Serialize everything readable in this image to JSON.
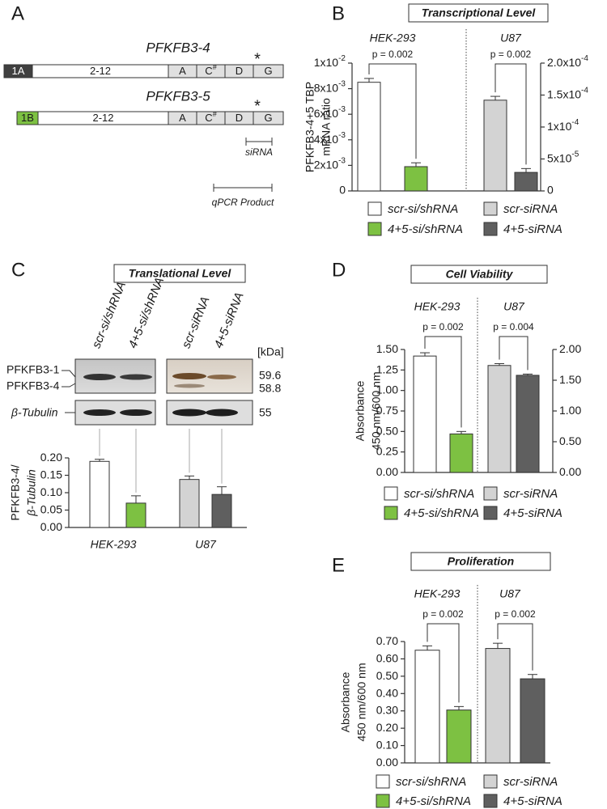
{
  "figure": {
    "panel_a": {
      "letter": "A",
      "genes": [
        {
          "name": "PFKFB3-4",
          "mark": "*",
          "exons": [
            {
              "label": "1A"
            },
            {
              "label": "2-12"
            },
            {
              "label": "A"
            },
            {
              "label": "C",
              "sup": "#"
            },
            {
              "label": "D"
            },
            {
              "label": "G"
            }
          ]
        },
        {
          "name": "PFKFB3-5",
          "mark": "*",
          "exons": [
            {
              "label": "1B"
            },
            {
              "label": "2-12"
            },
            {
              "label": "A"
            },
            {
              "label": "C",
              "sup": "#"
            },
            {
              "label": "D"
            },
            {
              "label": "G"
            }
          ]
        }
      ],
      "sirna": "siRNA",
      "qpcr": "qPCR Product"
    },
    "blot": {
      "size_unit": "[kDa]",
      "bands": [
        {
          "name": "PFKFB3-1",
          "size": "59.6"
        },
        {
          "name": "PFKFB3-4",
          "size": "58.8"
        }
      ],
      "loading": {
        "name": "β-Tubulin",
        "size": "55"
      }
    }
  },
  "chart_data": [
    {
      "type": "bar",
      "panel": "B",
      "title": "Transcriptional Level",
      "categories": [
        "HEK-293",
        "U87"
      ],
      "annotations": [
        "p = 0.002",
        "p = 0.002"
      ],
      "ylabel": [
        "PFKFB3-4+5 TBP",
        "mRNA ratio"
      ],
      "ylim": [
        0,
        0.01
      ],
      "yticks": [
        0,
        {
          "value": 0.002,
          "label": "2x10",
          "sup": "-3"
        },
        {
          "value": 0.004,
          "label": "4x10",
          "sup": "-3"
        },
        {
          "value": 0.006,
          "label": "6x10",
          "sup": "-3"
        },
        {
          "value": 0.008,
          "label": "8x10",
          "sup": "-3"
        },
        {
          "value": 0.01,
          "label": "1x10",
          "sup": "-2"
        }
      ],
      "y2lim": [
        0,
        0.0002
      ],
      "y2ticks": [
        0,
        {
          "value": 5e-05,
          "label": "5x10",
          "sup": "-5"
        },
        {
          "value": 0.0001,
          "label": "1x10",
          "sup": "-4"
        },
        {
          "value": 0.00015,
          "label": "1.5x10",
          "sup": "-4"
        },
        {
          "value": 0.0002,
          "label": "2.0x10",
          "sup": "-4"
        }
      ],
      "series": [
        {
          "name": "scr-si/shRNA",
          "color": "#ffffff",
          "values": [
            0.0085,
            null
          ],
          "errors": [
            0.0003,
            null
          ]
        },
        {
          "name": "4+5-si/shRNA",
          "color": "#7dc142",
          "values": [
            0.0019,
            null
          ],
          "errors": [
            0.0003,
            null
          ]
        },
        {
          "name": "scr-siRNA",
          "color": "#d3d3d3",
          "axis": "y2",
          "values": [
            null,
            0.000142
          ],
          "errors": [
            null,
            6e-06
          ]
        },
        {
          "name": "4+5-siRNA",
          "color": "#5f5f5f",
          "axis": "y2",
          "values": [
            null,
            2.9e-05
          ],
          "errors": [
            null,
            6e-06
          ]
        }
      ]
    },
    {
      "type": "bar",
      "panel": "C",
      "title": "Translational Level",
      "categories": [
        "HEK-293",
        "U87"
      ],
      "ylabel": [
        "PFKFB3-4/",
        "β-Tubulin"
      ],
      "ylim": [
        0,
        0.2
      ],
      "yticks": [
        {
          "value": 0,
          "label": "0.00"
        },
        {
          "value": 0.05,
          "label": "0.05"
        },
        {
          "value": 0.1,
          "label": "0.10"
        },
        {
          "value": 0.15,
          "label": "0.15"
        },
        {
          "value": 0.2,
          "label": "0.20"
        }
      ],
      "series": [
        {
          "name": "scr-si/shRNA",
          "color": "#ffffff",
          "values": [
            0.19,
            null
          ],
          "errors": [
            0.006,
            null
          ]
        },
        {
          "name": "4+5-si/shRNA",
          "color": "#7dc142",
          "values": [
            0.07,
            null
          ],
          "errors": [
            0.021,
            null
          ]
        },
        {
          "name": "scr-siRNA",
          "color": "#d3d3d3",
          "values": [
            null,
            0.138
          ],
          "errors": [
            null,
            0.01
          ]
        },
        {
          "name": "4+5-siRNA",
          "color": "#5f5f5f",
          "values": [
            null,
            0.095
          ],
          "errors": [
            null,
            0.022
          ]
        }
      ]
    },
    {
      "type": "bar",
      "panel": "D",
      "title": "Cell Viability",
      "categories": [
        "HEK-293",
        "U87"
      ],
      "annotations": [
        "p = 0.002",
        "p = 0.004"
      ],
      "ylabel": [
        "Absorbance",
        "450 nm/600 nm"
      ],
      "ylim": [
        0,
        1.5
      ],
      "yticks": [
        {
          "value": 0,
          "label": "0.00"
        },
        {
          "value": 0.25,
          "label": "0.25"
        },
        {
          "value": 0.5,
          "label": "0.50"
        },
        {
          "value": 0.75,
          "label": "0.75"
        },
        {
          "value": 1,
          "label": "1.00"
        },
        {
          "value": 1.25,
          "label": "1.25"
        },
        {
          "value": 1.5,
          "label": "1.50"
        }
      ],
      "y2lim": [
        0,
        2
      ],
      "y2ticks": [
        {
          "value": 0,
          "label": "0.00"
        },
        {
          "value": 0.5,
          "label": "0.50"
        },
        {
          "value": 1,
          "label": "1.00"
        },
        {
          "value": 1.5,
          "label": "1.50"
        },
        {
          "value": 2,
          "label": "2.00"
        }
      ],
      "series": [
        {
          "name": "scr-si/shRNA",
          "color": "#ffffff",
          "values": [
            1.42,
            null
          ],
          "errors": [
            0.04,
            null
          ]
        },
        {
          "name": "4+5-si/shRNA",
          "color": "#7dc142",
          "values": [
            0.47,
            null
          ],
          "errors": [
            0.03,
            null
          ]
        },
        {
          "name": "scr-siRNA",
          "color": "#d3d3d3",
          "axis": "y2",
          "values": [
            null,
            1.74
          ],
          "errors": [
            null,
            0.03
          ]
        },
        {
          "name": "4+5-siRNA",
          "color": "#5f5f5f",
          "axis": "y2",
          "values": [
            null,
            1.58
          ],
          "errors": [
            null,
            0.02
          ]
        }
      ]
    },
    {
      "type": "bar",
      "panel": "E",
      "title": "Proliferation",
      "categories": [
        "HEK-293",
        "U87"
      ],
      "annotations": [
        "p = 0.002",
        "p = 0.002"
      ],
      "ylabel": [
        "Absorbance",
        "450 nm/600 nm"
      ],
      "ylim": [
        0,
        0.7
      ],
      "yticks": [
        {
          "value": 0,
          "label": "0.00"
        },
        {
          "value": 0.1,
          "label": "0.10"
        },
        {
          "value": 0.2,
          "label": "0.20"
        },
        {
          "value": 0.3,
          "label": "0.30"
        },
        {
          "value": 0.4,
          "label": "0.40"
        },
        {
          "value": 0.5,
          "label": "0.50"
        },
        {
          "value": 0.6,
          "label": "0.60"
        },
        {
          "value": 0.7,
          "label": "0.70"
        }
      ],
      "series": [
        {
          "name": "scr-si/shRNA",
          "color": "#ffffff",
          "values": [
            0.65,
            null
          ],
          "errors": [
            0.025,
            null
          ]
        },
        {
          "name": "4+5-si/shRNA",
          "color": "#7dc142",
          "values": [
            0.305,
            null
          ],
          "errors": [
            0.02,
            null
          ]
        },
        {
          "name": "scr-siRNA",
          "color": "#d3d3d3",
          "values": [
            null,
            0.66
          ],
          "errors": [
            null,
            0.03
          ]
        },
        {
          "name": "4+5-siRNA",
          "color": "#5f5f5f",
          "values": [
            null,
            0.485
          ],
          "errors": [
            null,
            0.025
          ]
        }
      ]
    }
  ]
}
